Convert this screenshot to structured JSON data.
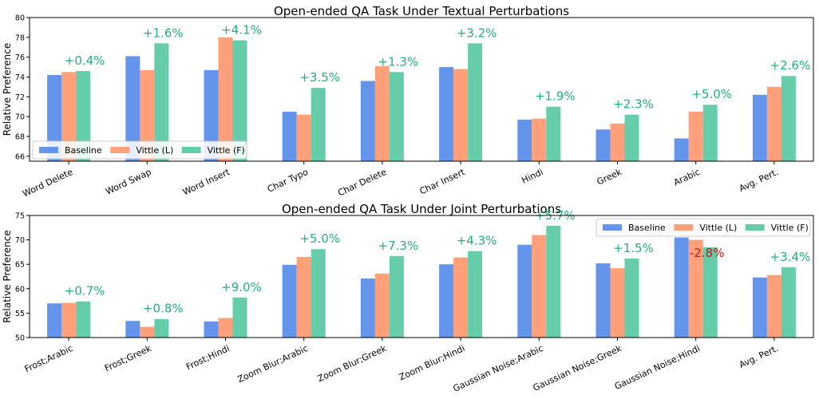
{
  "colors": {
    "baseline": "#6495ED",
    "vittle_l": "#FFA07A",
    "vittle_f": "#66CDAA",
    "pos_label": "#22B07D",
    "neg_label": "#C0181B"
  },
  "chart_data": [
    {
      "type": "bar",
      "title": "Open-ended QA Task Under Textual Perturbations",
      "xlabel": "",
      "ylabel": "Relative Preference",
      "ylim": [
        65.5,
        80
      ],
      "yticks": [
        66,
        68,
        70,
        72,
        74,
        76,
        78,
        80
      ],
      "legend_position": "bottom-left",
      "categories": [
        "Word Delete",
        "Word Swap",
        "Word Insert",
        "Char Typo",
        "Char Delete",
        "Char Insert",
        "Hindi",
        "Greek",
        "Arabic",
        "Avg. Pert."
      ],
      "series": [
        {
          "name": "Baseline",
          "values": [
            74.2,
            76.1,
            74.7,
            70.5,
            73.6,
            75.0,
            69.7,
            68.7,
            67.8,
            72.2
          ]
        },
        {
          "name": "Vittle (L)",
          "values": [
            74.5,
            74.7,
            78.0,
            70.2,
            75.1,
            74.8,
            69.8,
            69.3,
            70.5,
            73.0
          ]
        },
        {
          "name": "Vittle (F)",
          "values": [
            74.6,
            77.4,
            77.7,
            72.9,
            74.5,
            77.4,
            71.0,
            70.2,
            71.2,
            74.1
          ]
        }
      ],
      "annotations": [
        "+0.4%",
        "+1.6%",
        "+4.1%",
        "+3.5%",
        "+1.3%",
        "+3.2%",
        "+1.9%",
        "+2.3%",
        "+5.0%",
        "+2.6%"
      ]
    },
    {
      "type": "bar",
      "title": "Open-ended QA Task Under Joint Perturbations",
      "xlabel": "",
      "ylabel": "Relative Preference",
      "ylim": [
        50,
        75
      ],
      "yticks": [
        50,
        55,
        60,
        65,
        70,
        75
      ],
      "legend_position": "top-right",
      "categories": [
        "Frost;Arabic",
        "Frost;Greek",
        "Frost;Hindi",
        "Zoom Blur;Arabic",
        "Zoom Blur;Greek",
        "Zoom Blur;Hindi",
        "Gaussian Noise;Arabic",
        "Gaussian Noise;Greek",
        "Gaussian Noise;Hindi",
        "Avg. Pert."
      ],
      "series": [
        {
          "name": "Baseline",
          "values": [
            57.0,
            53.4,
            53.3,
            64.9,
            62.1,
            65.0,
            69.0,
            65.2,
            70.5,
            62.3
          ]
        },
        {
          "name": "Vittle (L)",
          "values": [
            57.1,
            52.2,
            54.0,
            66.5,
            63.1,
            66.4,
            71.0,
            64.2,
            70.0,
            62.8
          ]
        },
        {
          "name": "Vittle (F)",
          "values": [
            57.4,
            53.8,
            58.2,
            68.1,
            66.7,
            67.7,
            72.9,
            66.2,
            68.5,
            64.4
          ]
        }
      ],
      "annotations": [
        "+0.7%",
        "+0.8%",
        "+9.0%",
        "+5.0%",
        "+7.3%",
        "+4.3%",
        "+5.7%",
        "+1.5%",
        "-2.8%",
        "+3.4%"
      ]
    }
  ]
}
